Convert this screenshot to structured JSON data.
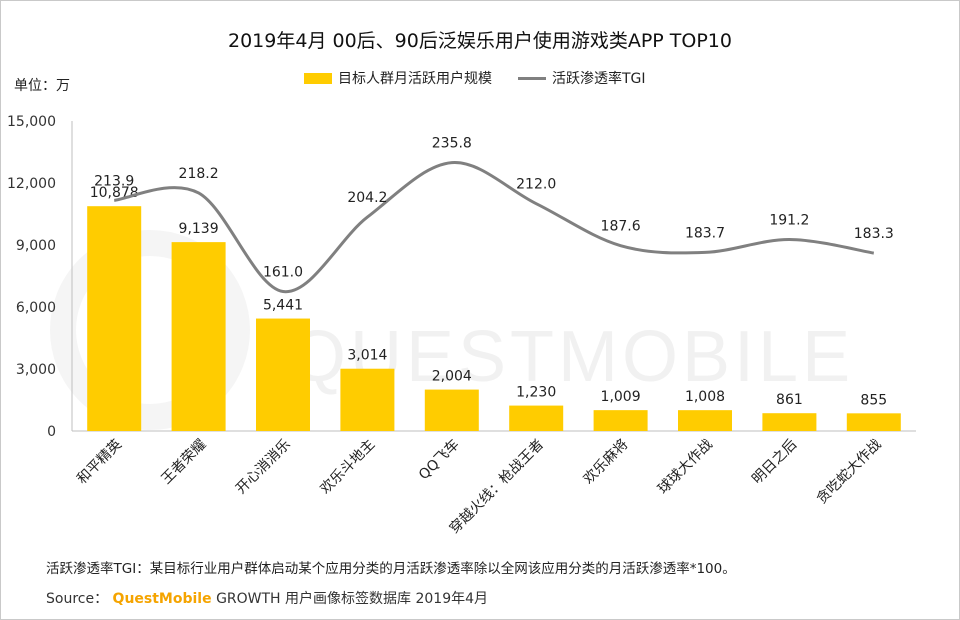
{
  "title": "2019年4月 00后、90后泛娱乐用户使用游戏类APP TOP10",
  "unit_label": "单位：万",
  "legend": {
    "bar_label": "目标人群月活跃用户规模",
    "line_label": "活跃渗透率TGI"
  },
  "watermark": "QUESTMOBILE",
  "footnote": "活跃渗透率TGI：某目标行业用户群体启动某个应用分类的月活跃渗透率除以全网该应用分类的月活跃渗透率*100。",
  "source": {
    "prefix": "Source：",
    "brand": "QuestMobile",
    "suffix": " GROWTH 用户画像标签数据库 2019年4月"
  },
  "colors": {
    "bar": "#ffcc00",
    "line": "#808080",
    "brand": "#f5a400"
  },
  "chart_data": {
    "type": "bar",
    "categories": [
      "和平精英",
      "王者荣耀",
      "开心消消乐",
      "欢乐斗地主",
      "QQ飞车",
      "穿越火线：枪战王者",
      "欢乐麻将",
      "球球大作战",
      "明日之后",
      "贪吃蛇大作战"
    ],
    "series": [
      {
        "name": "目标人群月活跃用户规模",
        "type": "bar",
        "values": [
          10878,
          9139,
          5441,
          3014,
          2004,
          1230,
          1009,
          1008,
          861,
          855
        ],
        "labels": [
          "10,878",
          "9,139",
          "5,441",
          "3,014",
          "2,004",
          "1,230",
          "1,009",
          "1,008",
          "861",
          "855"
        ]
      },
      {
        "name": "活跃渗透率TGI",
        "type": "line",
        "values": [
          213.9,
          218.2,
          161.0,
          204.2,
          235.8,
          212.0,
          187.6,
          183.7,
          191.2,
          183.3
        ],
        "labels": [
          "213.9",
          "218.2",
          "161.0",
          "204.2",
          "235.8",
          "212.0",
          "187.6",
          "183.7",
          "191.2",
          "183.3"
        ]
      }
    ],
    "y_ticks": [
      "15,000",
      "12,000",
      "9,000",
      "6,000",
      "3,000",
      "0"
    ],
    "ylim": [
      0,
      15000
    ],
    "title": "2019年4月 00后、90后泛娱乐用户使用游戏类APP TOP10"
  }
}
